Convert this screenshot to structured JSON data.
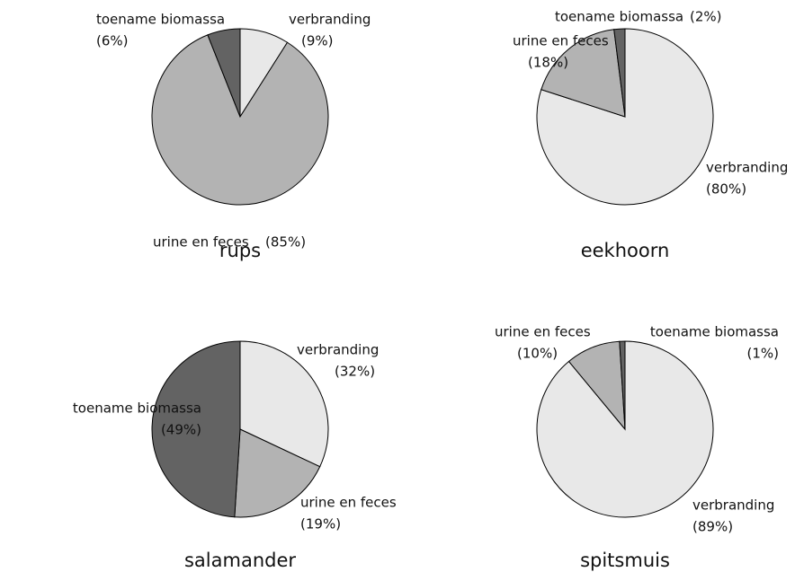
{
  "chart_data": [
    {
      "type": "pie",
      "title": "rups",
      "categories": [
        "verbranding",
        "urine en feces",
        "toename biomassa"
      ],
      "values": [
        9,
        85,
        6
      ],
      "value_labels": [
        "(9%)",
        "(85%)",
        "(6%)"
      ],
      "colors": [
        "#e8e8e8",
        "#b3b3b3",
        "#636363"
      ]
    },
    {
      "type": "pie",
      "title": "eekhoorn",
      "categories": [
        "verbranding",
        "urine en feces",
        "toename biomassa"
      ],
      "values": [
        80,
        18,
        2
      ],
      "value_labels": [
        "(80%)",
        "(18%)",
        "(2%)"
      ],
      "colors": [
        "#e8e8e8",
        "#b3b3b3",
        "#636363"
      ]
    },
    {
      "type": "pie",
      "title": "salamander",
      "categories": [
        "verbranding",
        "urine en feces",
        "toename biomassa"
      ],
      "values": [
        32,
        19,
        49
      ],
      "value_labels": [
        "(32%)",
        "(19%)",
        "(49%)"
      ],
      "colors": [
        "#e8e8e8",
        "#b3b3b3",
        "#636363"
      ]
    },
    {
      "type": "pie",
      "title": "spitsmuis",
      "categories": [
        "verbranding",
        "urine en feces",
        "toename biomassa"
      ],
      "values": [
        89,
        10,
        1
      ],
      "value_labels": [
        "(89%)",
        "(10%)",
        "(1%)"
      ],
      "colors": [
        "#e8e8e8",
        "#b3b3b3",
        "#636363"
      ]
    }
  ]
}
